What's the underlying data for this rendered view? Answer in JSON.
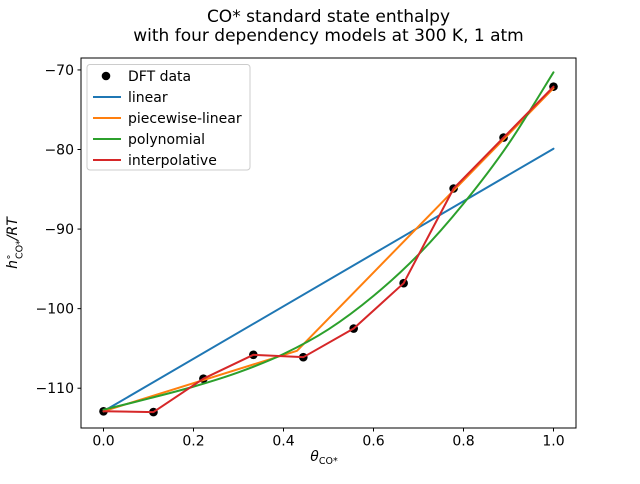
{
  "title": {
    "line1": "CO* standard state enthalpy",
    "line2": "with four dependency models at 300 K, 1 atm"
  },
  "axes": {
    "xlabel": {
      "base": "θ",
      "sub": "CO*"
    },
    "ylabel": {
      "base": "h",
      "sup": "∘",
      "sub": "CO*",
      "rest": "/RT"
    },
    "xticks": {
      "values": [
        0.0,
        0.2,
        0.4,
        0.6,
        0.8,
        1.0
      ],
      "labels": [
        "0.0",
        "0.2",
        "0.4",
        "0.6",
        "0.8",
        "1.0"
      ]
    },
    "yticks": {
      "values": [
        -70,
        -80,
        -90,
        -100,
        -110
      ],
      "labels": [
        "−70",
        "−80",
        "−90",
        "−100",
        "−110"
      ]
    }
  },
  "chart_data": {
    "type": "line",
    "title": "CO* standard state enthalpy with four dependency models at 300 K, 1 atm",
    "xlabel": "theta_CO*",
    "ylabel": "h°_CO*/RT",
    "xlim": [
      -0.05,
      1.05
    ],
    "ylim": [
      -115.0,
      -68.5
    ],
    "grid": false,
    "series": [
      {
        "name": "DFT data",
        "type": "scatter",
        "color": "#000000",
        "x": [
          0.0,
          0.111,
          0.222,
          0.333,
          0.444,
          0.556,
          0.667,
          0.778,
          0.889,
          1.0
        ],
        "y": [
          -112.9,
          -113.0,
          -108.8,
          -105.8,
          -106.1,
          -102.5,
          -96.8,
          -84.9,
          -78.5,
          -72.1
        ]
      },
      {
        "name": "linear",
        "type": "line",
        "color": "#1f77b4",
        "x": [
          0.0,
          1.0
        ],
        "y": [
          -112.9,
          -79.9
        ]
      },
      {
        "name": "piecewise-linear",
        "type": "line",
        "color": "#ff7f0e",
        "x": [
          0.0,
          0.43,
          1.0
        ],
        "y": [
          -112.9,
          -105.3,
          -72.3
        ]
      },
      {
        "name": "polynomial",
        "type": "line",
        "color": "#2ca02c",
        "smooth": true,
        "x": [
          0.0,
          0.1,
          0.2,
          0.3,
          0.4,
          0.5,
          0.6,
          0.7,
          0.8,
          0.9,
          1.0
        ],
        "y": [
          -112.7,
          -111.3,
          -109.8,
          -108.0,
          -105.7,
          -102.6,
          -98.4,
          -93.2,
          -86.8,
          -79.3,
          -70.3
        ]
      },
      {
        "name": "interpolative",
        "type": "line",
        "color": "#d62728",
        "x": [
          0.0,
          0.111,
          0.222,
          0.333,
          0.444,
          0.556,
          0.667,
          0.778,
          0.889,
          1.0
        ],
        "y": [
          -112.9,
          -113.0,
          -108.8,
          -105.8,
          -106.1,
          -102.5,
          -96.8,
          -84.9,
          -78.5,
          -72.1
        ]
      }
    ],
    "legend": {
      "position": "upper left",
      "entries": [
        "DFT data",
        "linear",
        "piecewise-linear",
        "polynomial",
        "interpolative"
      ]
    }
  }
}
